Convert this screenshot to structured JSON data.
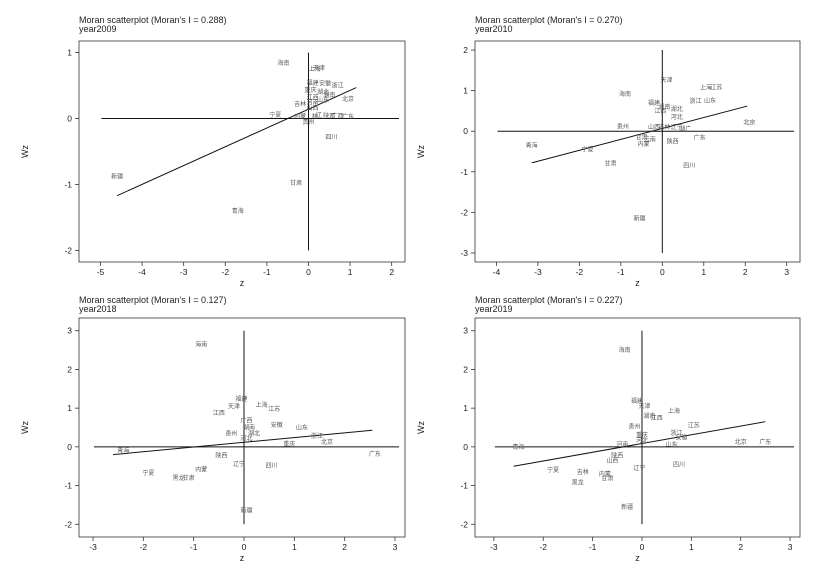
{
  "chart_data": [
    {
      "type": "scatter",
      "title": "Moran scatterplot (Moran's I = 0.288)",
      "subtitle": "year2009",
      "xlabel": "z",
      "ylabel": "Wz",
      "xlim": [
        -5.3,
        2.2
      ],
      "ylim": [
        -2.1,
        1.1
      ],
      "xticks": [
        -5,
        -4,
        -3,
        -2,
        -1,
        0,
        1,
        2
      ],
      "yticks": [
        -2,
        -1,
        0,
        1
      ],
      "fit_line": {
        "x": [
          -4.6,
          1.15
        ],
        "y": [
          -1.17,
          0.47
        ]
      },
      "points": [
        {
          "label": "海南",
          "x": -0.6,
          "y": 0.84
        },
        {
          "label": "上海",
          "x": 0.15,
          "y": 0.75
        },
        {
          "label": "天津",
          "x": 0.25,
          "y": 0.77
        },
        {
          "label": "福建",
          "x": 0.1,
          "y": 0.54
        },
        {
          "label": "安徽",
          "x": 0.4,
          "y": 0.53
        },
        {
          "label": "浙江",
          "x": 0.7,
          "y": 0.5
        },
        {
          "label": "重庆",
          "x": 0.05,
          "y": 0.43
        },
        {
          "label": "湖北",
          "x": 0.35,
          "y": 0.4
        },
        {
          "label": "湖南",
          "x": 0.5,
          "y": 0.36
        },
        {
          "label": "江西",
          "x": 0.1,
          "y": 0.32
        },
        {
          "label": "山东",
          "x": 0.35,
          "y": 0.28
        },
        {
          "label": "河南",
          "x": 0.1,
          "y": 0.24
        },
        {
          "label": "北京",
          "x": 0.95,
          "y": 0.3
        },
        {
          "label": "吉林",
          "x": -0.2,
          "y": 0.22
        },
        {
          "label": "山西",
          "x": 0.1,
          "y": 0.16
        },
        {
          "label": "宁夏",
          "x": -0.8,
          "y": 0.05
        },
        {
          "label": "内蒙",
          "x": -0.2,
          "y": 0.03
        },
        {
          "label": "林",
          "x": 0.15,
          "y": 0.03
        },
        {
          "label": "辽",
          "x": 0.25,
          "y": 0.05
        },
        {
          "label": "陕西",
          "x": 0.5,
          "y": 0.04
        },
        {
          "label": "广西",
          "x": 0.7,
          "y": 0.04
        },
        {
          "label": "广东",
          "x": 0.95,
          "y": 0.03
        },
        {
          "label": "贵州",
          "x": 0.0,
          "y": -0.05
        },
        {
          "label": "四川",
          "x": 0.55,
          "y": -0.28
        },
        {
          "label": "甘肃",
          "x": -0.3,
          "y": -0.98
        },
        {
          "label": "新疆",
          "x": -4.6,
          "y": -0.88
        },
        {
          "label": "青海",
          "x": -1.7,
          "y": -1.4
        }
      ]
    },
    {
      "type": "scatter",
      "title": "Moran scatterplot (Moran's I = 0.270)",
      "subtitle": "year2010",
      "xlabel": "z",
      "ylabel": "Wz",
      "xlim": [
        -4.3,
        3.2
      ],
      "ylim": [
        -3.1,
        2.1
      ],
      "xticks": [
        -4,
        -3,
        -2,
        -1,
        0,
        1,
        2,
        3
      ],
      "yticks": [
        -3,
        -2,
        -1,
        0,
        1,
        2
      ],
      "fit_line": {
        "x": [
          -3.15,
          2.05
        ],
        "y": [
          -0.78,
          0.62
        ]
      },
      "points": [
        {
          "label": "天津",
          "x": 0.1,
          "y": 1.26
        },
        {
          "label": "上海",
          "x": 1.05,
          "y": 1.08
        },
        {
          "label": "江苏",
          "x": 1.3,
          "y": 1.08
        },
        {
          "label": "海南",
          "x": -0.9,
          "y": 0.92
        },
        {
          "label": "浙江",
          "x": 0.8,
          "y": 0.75
        },
        {
          "label": "山东",
          "x": 1.15,
          "y": 0.76
        },
        {
          "label": "福建",
          "x": -0.2,
          "y": 0.7
        },
        {
          "label": "湖北",
          "x": 0.35,
          "y": 0.55
        },
        {
          "label": "湖南",
          "x": 0.05,
          "y": 0.6
        },
        {
          "label": "江西",
          "x": -0.05,
          "y": 0.5
        },
        {
          "label": "河北",
          "x": 0.35,
          "y": 0.35
        },
        {
          "label": "北京",
          "x": 2.1,
          "y": 0.22
        },
        {
          "label": "贵州",
          "x": -0.95,
          "y": 0.12
        },
        {
          "label": "山西",
          "x": -0.2,
          "y": 0.1
        },
        {
          "label": "吉林",
          "x": 0.05,
          "y": 0.1
        },
        {
          "label": "辽宁",
          "x": 0.35,
          "y": 0.1
        },
        {
          "label": "湖广",
          "x": 0.55,
          "y": 0.05
        },
        {
          "label": "广东",
          "x": 0.9,
          "y": -0.15
        },
        {
          "label": "甘肃",
          "x": -0.5,
          "y": -0.15
        },
        {
          "label": "云南",
          "x": -0.3,
          "y": -0.2
        },
        {
          "label": "陕西",
          "x": 0.25,
          "y": -0.25
        },
        {
          "label": "内蒙",
          "x": -0.45,
          "y": -0.32
        },
        {
          "label": "青海",
          "x": -3.15,
          "y": -0.35
        },
        {
          "label": "宁夏",
          "x": -1.8,
          "y": -0.45
        },
        {
          "label": "甘肃",
          "x": -1.25,
          "y": -0.8
        },
        {
          "label": "四川",
          "x": 0.65,
          "y": -0.85
        },
        {
          "label": "新疆",
          "x": -0.55,
          "y": -2.15
        }
      ]
    },
    {
      "type": "scatter",
      "title": "Moran scatterplot (Moran's I = 0.127)",
      "subtitle": "year2018",
      "xlabel": "z",
      "ylabel": "Wz",
      "xlim": [
        -3.1,
        3.1
      ],
      "ylim": [
        -2.2,
        3.2
      ],
      "xticks": [
        -3,
        -2,
        -1,
        0,
        1,
        2,
        3
      ],
      "yticks": [
        -2,
        -1,
        0,
        1,
        2,
        3
      ],
      "fit_line": {
        "x": [
          -2.6,
          2.55
        ],
        "y": [
          -0.2,
          0.43
        ]
      },
      "points": [
        {
          "label": "海南",
          "x": -0.85,
          "y": 2.64
        },
        {
          "label": "福建",
          "x": -0.05,
          "y": 1.24
        },
        {
          "label": "天津",
          "x": -0.2,
          "y": 1.04
        },
        {
          "label": "上海",
          "x": 0.35,
          "y": 1.08
        },
        {
          "label": "江苏",
          "x": 0.6,
          "y": 0.98
        },
        {
          "label": "江西",
          "x": -0.5,
          "y": 0.88
        },
        {
          "label": "广西",
          "x": 0.05,
          "y": 0.68
        },
        {
          "label": "安徽",
          "x": 0.65,
          "y": 0.56
        },
        {
          "label": "山东",
          "x": 1.15,
          "y": 0.5
        },
        {
          "label": "湖南",
          "x": 0.1,
          "y": 0.5
        },
        {
          "label": "贵州",
          "x": -0.25,
          "y": 0.35
        },
        {
          "label": "湖北",
          "x": 0.2,
          "y": 0.35
        },
        {
          "label": "河北",
          "x": 0.05,
          "y": 0.22
        },
        {
          "label": "浙江",
          "x": 1.45,
          "y": 0.28
        },
        {
          "label": "重庆",
          "x": 0.9,
          "y": 0.08
        },
        {
          "label": "北京",
          "x": 1.65,
          "y": 0.12
        },
        {
          "label": "青海",
          "x": -2.4,
          "y": -0.1
        },
        {
          "label": "陕西",
          "x": -0.45,
          "y": -0.22
        },
        {
          "label": "辽宁",
          "x": -0.1,
          "y": -0.44
        },
        {
          "label": "四川",
          "x": 0.55,
          "y": -0.48
        },
        {
          "label": "广东",
          "x": 2.6,
          "y": -0.18
        },
        {
          "label": "内蒙",
          "x": -0.85,
          "y": -0.58
        },
        {
          "label": "宁夏",
          "x": -1.9,
          "y": -0.68
        },
        {
          "label": "黑龙",
          "x": -1.3,
          "y": -0.8
        },
        {
          "label": "甘肃",
          "x": -1.1,
          "y": -0.8
        },
        {
          "label": "新疆",
          "x": 0.05,
          "y": -1.65
        }
      ]
    },
    {
      "type": "scatter",
      "title": "Moran scatterplot (Moran's I = 0.227)",
      "subtitle": "year2019",
      "xlabel": "z",
      "ylabel": "Wz",
      "xlim": [
        -3.2,
        3.1
      ],
      "ylim": [
        -2.2,
        3.2
      ],
      "xticks": [
        -3,
        -2,
        -1,
        0,
        1,
        2,
        3
      ],
      "yticks": [
        -2,
        -1,
        0,
        1,
        2,
        3
      ],
      "fit_line": {
        "x": [
          -2.6,
          2.5
        ],
        "y": [
          -0.5,
          0.65
        ]
      },
      "points": [
        {
          "label": "海南",
          "x": -0.35,
          "y": 2.5
        },
        {
          "label": "福建",
          "x": -0.1,
          "y": 1.18
        },
        {
          "label": "天津",
          "x": 0.05,
          "y": 1.06
        },
        {
          "label": "上海",
          "x": 0.65,
          "y": 0.92
        },
        {
          "label": "湖南",
          "x": 0.15,
          "y": 0.8
        },
        {
          "label": "江西",
          "x": 0.3,
          "y": 0.75
        },
        {
          "label": "江苏",
          "x": 1.05,
          "y": 0.55
        },
        {
          "label": "贵州",
          "x": -0.15,
          "y": 0.52
        },
        {
          "label": "浙江",
          "x": 0.7,
          "y": 0.36
        },
        {
          "label": "重庆",
          "x": 0.0,
          "y": 0.3
        },
        {
          "label": "安徽",
          "x": 0.8,
          "y": 0.24
        },
        {
          "label": "河北",
          "x": 0.0,
          "y": 0.16
        },
        {
          "label": "北京",
          "x": 2.0,
          "y": 0.12
        },
        {
          "label": "广东",
          "x": 2.5,
          "y": 0.12
        },
        {
          "label": "河南",
          "x": -0.4,
          "y": 0.06
        },
        {
          "label": "山东",
          "x": 0.6,
          "y": 0.06
        },
        {
          "label": "青海",
          "x": -2.5,
          "y": 0.0
        },
        {
          "label": "陕西",
          "x": -0.5,
          "y": -0.22
        },
        {
          "label": "山西",
          "x": -0.6,
          "y": -0.35
        },
        {
          "label": "四川",
          "x": 0.75,
          "y": -0.45
        },
        {
          "label": "辽宁",
          "x": -0.05,
          "y": -0.55
        },
        {
          "label": "宁夏",
          "x": -1.8,
          "y": -0.6
        },
        {
          "label": "吉林",
          "x": -1.2,
          "y": -0.65
        },
        {
          "label": "内蒙",
          "x": -0.75,
          "y": -0.7
        },
        {
          "label": "甘肃",
          "x": -0.7,
          "y": -0.82
        },
        {
          "label": "黑龙",
          "x": -1.3,
          "y": -0.92
        },
        {
          "label": "新疆",
          "x": -0.3,
          "y": -1.55
        }
      ]
    }
  ]
}
